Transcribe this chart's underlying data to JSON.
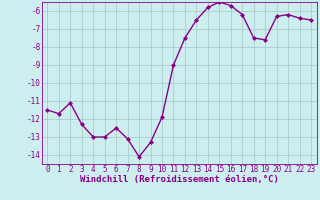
{
  "x": [
    0,
    1,
    2,
    3,
    4,
    5,
    6,
    7,
    8,
    9,
    10,
    11,
    12,
    13,
    14,
    15,
    16,
    17,
    18,
    19,
    20,
    21,
    22,
    23
  ],
  "y": [
    -11.5,
    -11.7,
    -11.1,
    -12.3,
    -13.0,
    -13.0,
    -12.5,
    -13.1,
    -14.1,
    -13.3,
    -11.9,
    -9.0,
    -7.5,
    -6.5,
    -5.8,
    -5.5,
    -5.7,
    -6.2,
    -7.5,
    -7.6,
    -6.3,
    -6.2,
    -6.4,
    -6.5
  ],
  "line_color": "#880088",
  "marker": "D",
  "marker_size": 2.0,
  "bg_color": "#cceeee",
  "grid_color": "#aacccc",
  "xlabel": "Windchill (Refroidissement éolien,°C)",
  "ylim": [
    -14.5,
    -5.5
  ],
  "xlim": [
    -0.5,
    23.5
  ],
  "yticks": [
    -14,
    -13,
    -12,
    -11,
    -10,
    -9,
    -8,
    -7,
    -6
  ],
  "xticks": [
    0,
    1,
    2,
    3,
    4,
    5,
    6,
    7,
    8,
    9,
    10,
    11,
    12,
    13,
    14,
    15,
    16,
    17,
    18,
    19,
    20,
    21,
    22,
    23
  ],
  "tick_label_fontsize": 5.5,
  "xlabel_fontsize": 6.5,
  "line_width": 1.0
}
